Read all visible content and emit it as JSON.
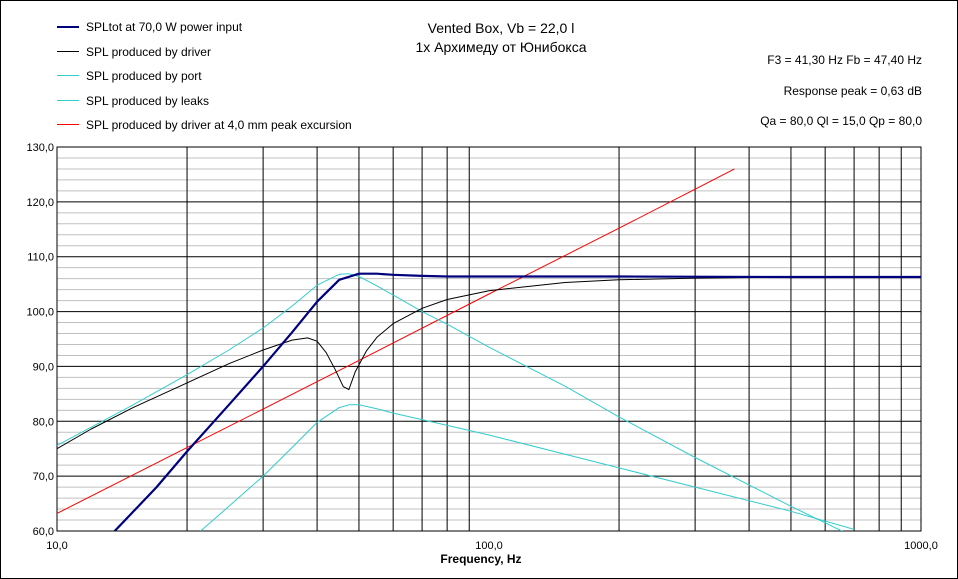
{
  "chart_data": {
    "type": "line",
    "title": "Vented Box, Vb = 22,0 l",
    "subtitle": "1x Архимеду от Юнибокса",
    "xlabel": "Frequency, Hz",
    "ylabel": "",
    "x_scale": "log",
    "xlim": [
      10,
      1000
    ],
    "ylim": [
      60,
      130
    ],
    "x_tick_labels": [
      "10,0",
      "100,0",
      "1000,0"
    ],
    "y_tick_labels": [
      "60,0",
      "70,0",
      "80,0",
      "90,0",
      "100,0",
      "110,0",
      "120,0",
      "130,0"
    ],
    "grid": true,
    "legend_position": "top-left",
    "annotations": [
      "F3 = 41,30  Hz   Fb = 47,40  Hz",
      "Response peak = 0,63 dB",
      "Qa = 80,0   Ql = 15,0   Qp = 80,0"
    ],
    "series": [
      {
        "name": "SPLtot at 70,0 W power input",
        "color": "#00007f",
        "x": [
          13.6,
          15,
          17,
          20,
          25,
          30,
          35,
          40,
          45,
          50,
          55,
          60,
          70,
          80,
          100,
          200,
          500,
          1000
        ],
        "y": [
          60.0,
          63.5,
          68.0,
          74.5,
          83.0,
          90.0,
          96.2,
          101.8,
          105.8,
          106.9,
          106.9,
          106.7,
          106.5,
          106.4,
          106.4,
          106.4,
          106.3,
          106.3
        ]
      },
      {
        "name": "SPL produced by driver",
        "color": "#000000",
        "x": [
          10,
          12,
          15,
          20,
          25,
          30,
          35,
          38,
          40,
          42,
          44,
          46,
          47.4,
          49,
          52,
          55,
          60,
          70,
          80,
          100,
          150,
          200,
          300,
          500,
          1000
        ],
        "y": [
          75.0,
          78.6,
          82.5,
          87.0,
          90.5,
          93.0,
          94.8,
          95.2,
          94.6,
          92.5,
          89.5,
          86.3,
          85.8,
          89.0,
          92.8,
          95.3,
          97.8,
          100.6,
          102.2,
          103.8,
          105.3,
          105.8,
          106.1,
          106.3,
          106.3
        ]
      },
      {
        "name": "SPL produced by port",
        "color": "#33cccc",
        "x": [
          10,
          15,
          20,
          25,
          30,
          35,
          40,
          45,
          47.4,
          50,
          55,
          60,
          70,
          80,
          100,
          150,
          200,
          300,
          500,
          1000
        ],
        "y": [
          75.6,
          83.0,
          88.5,
          93.0,
          97.0,
          101.0,
          104.8,
          106.8,
          106.9,
          106.4,
          104.7,
          103.0,
          100.0,
          97.7,
          93.5,
          86.4,
          80.8,
          73.4,
          64.5,
          53.0
        ]
      },
      {
        "name": "SPL produced by leaks",
        "color": "#33cccc",
        "x": [
          21.5,
          25,
          30,
          35,
          40,
          45,
          47.4,
          50,
          55,
          60,
          70,
          100,
          200,
          500,
          700
        ],
        "y": [
          60.0,
          64.5,
          70.0,
          75.2,
          79.8,
          82.5,
          83.0,
          83.0,
          82.3,
          81.5,
          80.3,
          77.5,
          71.5,
          63.6,
          60.3
        ]
      },
      {
        "name": "SPL produced by driver at 4,0 mm peak excursion",
        "color": "#ff0000",
        "x": [
          10,
          20,
          50,
          100,
          200,
          300,
          370
        ],
        "y": [
          63.2,
          75.2,
          91.1,
          103.2,
          115.2,
          122.3,
          126.0
        ]
      }
    ]
  }
}
